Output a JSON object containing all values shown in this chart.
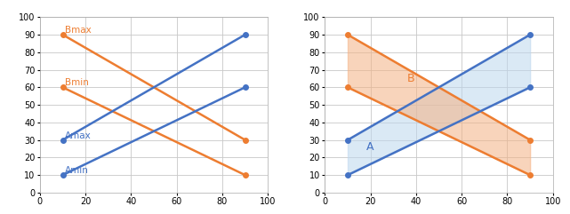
{
  "x": [
    10,
    90
  ],
  "Amax": [
    30,
    90
  ],
  "Amin": [
    10,
    60
  ],
  "Bmax": [
    90,
    30
  ],
  "Bmin": [
    60,
    10
  ],
  "blue_color": "#4472C4",
  "orange_color": "#ED7D31",
  "fill_blue_color": "#BDD7EE",
  "fill_orange_color": "#F4B183",
  "fill_alpha": 0.55,
  "xlim": [
    0,
    100
  ],
  "ylim": [
    0,
    100
  ],
  "label_Amax": "Amax",
  "label_Amin": "Amin",
  "label_Bmax": "Bmax",
  "label_Bmin": "Bmin",
  "label_A": "A",
  "label_B": "B",
  "xticks": [
    0,
    20,
    40,
    60,
    80,
    100
  ],
  "yticks": [
    0,
    10,
    20,
    30,
    40,
    50,
    60,
    70,
    80,
    90,
    100
  ]
}
